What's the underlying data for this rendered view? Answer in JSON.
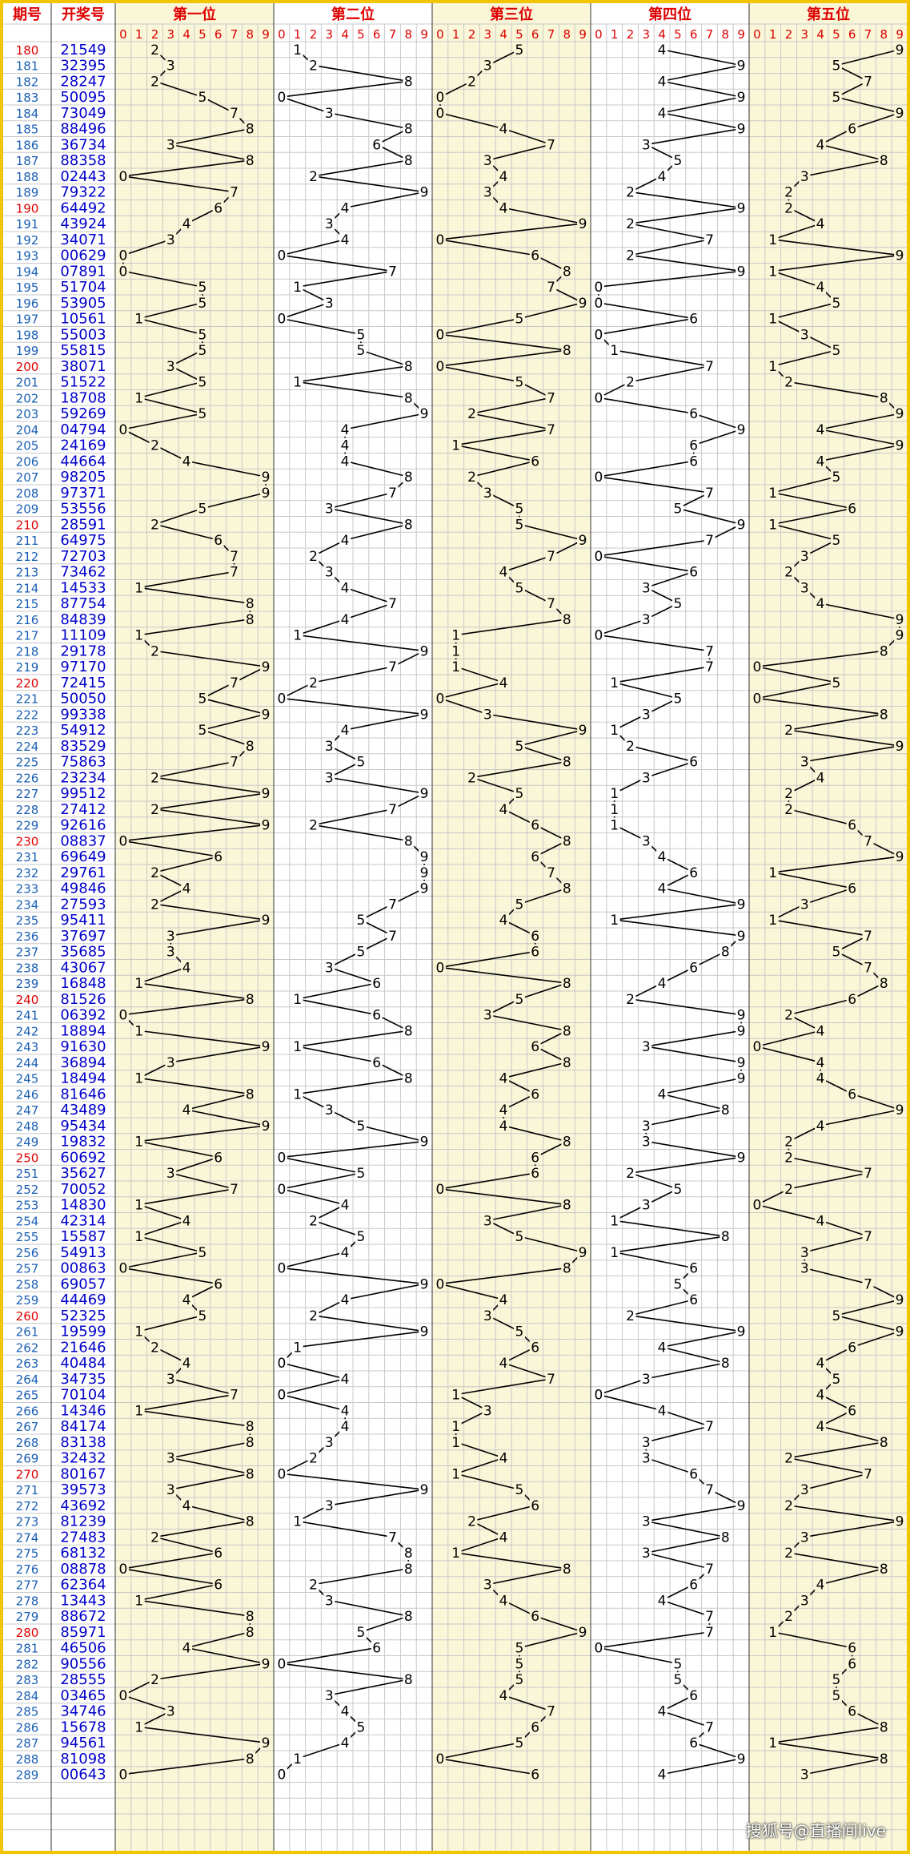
{
  "header": {
    "period_label": "期号",
    "number_label": "开奖号",
    "position_labels": [
      "第一位",
      "第二位",
      "第三位",
      "第四位",
      "第五位"
    ],
    "digit_labels": [
      "0",
      "1",
      "2",
      "3",
      "4",
      "5",
      "6",
      "7",
      "8",
      "9"
    ]
  },
  "watermark": "搜狐号@直播间live",
  "colors": {
    "border": "#f2c500",
    "header_red": "#dd0000",
    "period_blue": "#1a5fb4",
    "number_blue": "#0000cc",
    "highlight_red": "#e00000",
    "odd_panel_bg": "#faf6d8",
    "grid": "#c8c8c8",
    "line": "#000000"
  },
  "chart_data": {
    "type": "line",
    "x_label": "期号",
    "draws": [
      {
        "period": "180",
        "number": "21549"
      },
      {
        "period": "181",
        "number": "32395"
      },
      {
        "period": "182",
        "number": "28247"
      },
      {
        "period": "183",
        "number": "50095"
      },
      {
        "period": "184",
        "number": "73049"
      },
      {
        "period": "185",
        "number": "88496"
      },
      {
        "period": "186",
        "number": "36734"
      },
      {
        "period": "187",
        "number": "88358"
      },
      {
        "period": "188",
        "number": "02443"
      },
      {
        "period": "189",
        "number": "79322"
      },
      {
        "period": "190",
        "number": "64492"
      },
      {
        "period": "191",
        "number": "43924"
      },
      {
        "period": "192",
        "number": "34071"
      },
      {
        "period": "193",
        "number": "00629"
      },
      {
        "period": "194",
        "number": "07891"
      },
      {
        "period": "195",
        "number": "51704"
      },
      {
        "period": "196",
        "number": "53905"
      },
      {
        "period": "197",
        "number": "10561"
      },
      {
        "period": "198",
        "number": "55003"
      },
      {
        "period": "199",
        "number": "55815"
      },
      {
        "period": "200",
        "number": "38071"
      },
      {
        "period": "201",
        "number": "51522"
      },
      {
        "period": "202",
        "number": "18708"
      },
      {
        "period": "203",
        "number": "59269"
      },
      {
        "period": "204",
        "number": "04794"
      },
      {
        "period": "205",
        "number": "24169"
      },
      {
        "period": "206",
        "number": "44664"
      },
      {
        "period": "207",
        "number": "98205"
      },
      {
        "period": "208",
        "number": "97371"
      },
      {
        "period": "209",
        "number": "53556"
      },
      {
        "period": "210",
        "number": "28591"
      },
      {
        "period": "211",
        "number": "64975"
      },
      {
        "period": "212",
        "number": "72703"
      },
      {
        "period": "213",
        "number": "73462"
      },
      {
        "period": "214",
        "number": "14533"
      },
      {
        "period": "215",
        "number": "87754"
      },
      {
        "period": "216",
        "number": "84839"
      },
      {
        "period": "217",
        "number": "11109"
      },
      {
        "period": "218",
        "number": "29178"
      },
      {
        "period": "219",
        "number": "97170"
      },
      {
        "period": "220",
        "number": "72415"
      },
      {
        "period": "221",
        "number": "50050"
      },
      {
        "period": "222",
        "number": "99338"
      },
      {
        "period": "223",
        "number": "54912"
      },
      {
        "period": "224",
        "number": "83529"
      },
      {
        "period": "225",
        "number": "75863"
      },
      {
        "period": "226",
        "number": "23234"
      },
      {
        "period": "227",
        "number": "99512"
      },
      {
        "period": "228",
        "number": "27412"
      },
      {
        "period": "229",
        "number": "92616"
      },
      {
        "period": "230",
        "number": "08837"
      },
      {
        "period": "231",
        "number": "69649"
      },
      {
        "period": "232",
        "number": "29761"
      },
      {
        "period": "233",
        "number": "49846"
      },
      {
        "period": "234",
        "number": "27593"
      },
      {
        "period": "235",
        "number": "95411"
      },
      {
        "period": "236",
        "number": "37697"
      },
      {
        "period": "237",
        "number": "35685"
      },
      {
        "period": "238",
        "number": "43067"
      },
      {
        "period": "239",
        "number": "16848"
      },
      {
        "period": "240",
        "number": "81526"
      },
      {
        "period": "241",
        "number": "06392"
      },
      {
        "period": "242",
        "number": "18894"
      },
      {
        "period": "243",
        "number": "91630"
      },
      {
        "period": "244",
        "number": "36894"
      },
      {
        "period": "245",
        "number": "18494"
      },
      {
        "period": "246",
        "number": "81646"
      },
      {
        "period": "247",
        "number": "43489"
      },
      {
        "period": "248",
        "number": "95434"
      },
      {
        "period": "249",
        "number": "19832"
      },
      {
        "period": "250",
        "number": "60692"
      },
      {
        "period": "251",
        "number": "35627"
      },
      {
        "period": "252",
        "number": "70052"
      },
      {
        "period": "253",
        "number": "14830"
      },
      {
        "period": "254",
        "number": "42314"
      },
      {
        "period": "255",
        "number": "15587"
      },
      {
        "period": "256",
        "number": "54913"
      },
      {
        "period": "257",
        "number": "00863"
      },
      {
        "period": "258",
        "number": "69057"
      },
      {
        "period": "259",
        "number": "44469"
      },
      {
        "period": "260",
        "number": "52325"
      },
      {
        "period": "261",
        "number": "19599"
      },
      {
        "period": "262",
        "number": "21646"
      },
      {
        "period": "263",
        "number": "40484"
      },
      {
        "period": "264",
        "number": "34735"
      },
      {
        "period": "265",
        "number": "70104"
      },
      {
        "period": "266",
        "number": "14346"
      },
      {
        "period": "267",
        "number": "84174"
      },
      {
        "period": "268",
        "number": "83138"
      },
      {
        "period": "269",
        "number": "32432"
      },
      {
        "period": "270",
        "number": "80167"
      },
      {
        "period": "271",
        "number": "39573"
      },
      {
        "period": "272",
        "number": "43692"
      },
      {
        "period": "273",
        "number": "81239"
      },
      {
        "period": "274",
        "number": "27483"
      },
      {
        "period": "275",
        "number": "68132"
      },
      {
        "period": "276",
        "number": "08878"
      },
      {
        "period": "277",
        "number": "62364"
      },
      {
        "period": "278",
        "number": "13443"
      },
      {
        "period": "279",
        "number": "88672"
      },
      {
        "period": "280",
        "number": "85971"
      },
      {
        "period": "281",
        "number": "46506"
      },
      {
        "period": "282",
        "number": "90556"
      },
      {
        "period": "283",
        "number": "28555"
      },
      {
        "period": "284",
        "number": "03465"
      },
      {
        "period": "285",
        "number": "34746"
      },
      {
        "period": "286",
        "number": "15678"
      },
      {
        "period": "287",
        "number": "94561"
      },
      {
        "period": "288",
        "number": "81098"
      },
      {
        "period": "289",
        "number": "00643"
      }
    ]
  }
}
